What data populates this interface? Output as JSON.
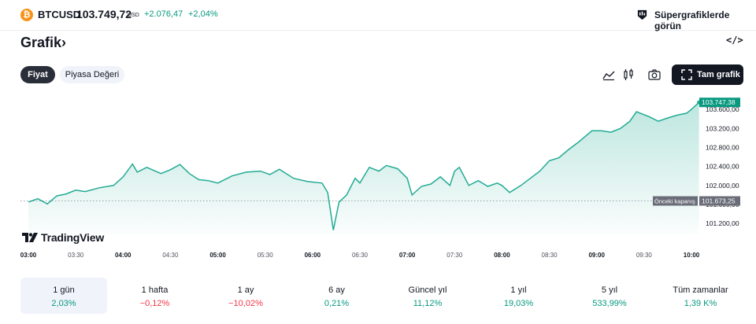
{
  "header": {
    "symbol": "BTCUSD",
    "price": "103.749,72",
    "currency": "USD",
    "change": "+2.076,47",
    "change_pct": "+2,04%",
    "supercharts_link": "Süpergrafiklerde görün"
  },
  "title": "Grafik",
  "tabs": [
    {
      "label": "Fiyat",
      "active": true
    },
    {
      "label": "Piyasa Değeri",
      "active": false
    }
  ],
  "toolbar": {
    "full_chart_label": "Tam grafik"
  },
  "logo_text": "TradingView",
  "colors": {
    "up": "#089981",
    "down": "#f23645",
    "line": "#22ab94"
  },
  "chart_data": {
    "type": "area",
    "x_ticks": [
      "03:00",
      "03:30",
      "04:00",
      "04:30",
      "05:00",
      "05:30",
      "06:00",
      "06:30",
      "07:00",
      "07:30",
      "08:00",
      "08:30",
      "09:00",
      "09:30",
      "10:00"
    ],
    "x_bold": [
      "03:00",
      "04:00",
      "05:00",
      "06:00",
      "07:00",
      "08:00",
      "09:00",
      "10:00"
    ],
    "y_ticks": [
      101200,
      101600,
      102000,
      102400,
      102800,
      103200,
      103600
    ],
    "y_tick_labels": [
      "101.200,00",
      "101.600,00",
      "102.000,00",
      "102.400,00",
      "102.800,00",
      "103.200,00",
      "103.600,00"
    ],
    "ylim": [
      100970,
      103850
    ],
    "last_value": 103747.38,
    "last_label": "103.747,38",
    "prev_close": 101673.25,
    "prev_close_label": "101.673,25",
    "prev_close_text": "Önceki kapanış",
    "points_hours": [
      [
        3.0,
        101650
      ],
      [
        3.1,
        101720
      ],
      [
        3.2,
        101610
      ],
      [
        3.3,
        101780
      ],
      [
        3.4,
        101820
      ],
      [
        3.5,
        101900
      ],
      [
        3.6,
        101870
      ],
      [
        3.75,
        101950
      ],
      [
        3.9,
        102000
      ],
      [
        4.0,
        102180
      ],
      [
        4.1,
        102450
      ],
      [
        4.15,
        102280
      ],
      [
        4.25,
        102380
      ],
      [
        4.4,
        102250
      ],
      [
        4.5,
        102330
      ],
      [
        4.6,
        102440
      ],
      [
        4.7,
        102250
      ],
      [
        4.8,
        102120
      ],
      [
        4.9,
        102100
      ],
      [
        5.0,
        102050
      ],
      [
        5.15,
        102200
      ],
      [
        5.3,
        102280
      ],
      [
        5.45,
        102300
      ],
      [
        5.55,
        102230
      ],
      [
        5.65,
        102340
      ],
      [
        5.8,
        102150
      ],
      [
        5.95,
        102080
      ],
      [
        6.1,
        102050
      ],
      [
        6.16,
        101850
      ],
      [
        6.22,
        101060
      ],
      [
        6.28,
        101650
      ],
      [
        6.36,
        101800
      ],
      [
        6.45,
        102150
      ],
      [
        6.5,
        102050
      ],
      [
        6.6,
        102380
      ],
      [
        6.7,
        102300
      ],
      [
        6.78,
        102420
      ],
      [
        6.9,
        102350
      ],
      [
        7.0,
        102150
      ],
      [
        7.05,
        101800
      ],
      [
        7.15,
        101980
      ],
      [
        7.25,
        102030
      ],
      [
        7.35,
        102180
      ],
      [
        7.45,
        102000
      ],
      [
        7.5,
        102300
      ],
      [
        7.55,
        102380
      ],
      [
        7.65,
        102000
      ],
      [
        7.75,
        102100
      ],
      [
        7.85,
        101980
      ],
      [
        7.95,
        102050
      ],
      [
        8.0,
        102000
      ],
      [
        8.08,
        101850
      ],
      [
        8.2,
        102000
      ],
      [
        8.3,
        102150
      ],
      [
        8.4,
        102300
      ],
      [
        8.5,
        102520
      ],
      [
        8.6,
        102580
      ],
      [
        8.7,
        102750
      ],
      [
        8.8,
        102900
      ],
      [
        8.95,
        103150
      ],
      [
        9.05,
        103150
      ],
      [
        9.15,
        103120
      ],
      [
        9.25,
        103200
      ],
      [
        9.35,
        103350
      ],
      [
        9.42,
        103550
      ],
      [
        9.55,
        103450
      ],
      [
        9.65,
        103350
      ],
      [
        9.75,
        103420
      ],
      [
        9.85,
        103480
      ],
      [
        9.95,
        103520
      ],
      [
        10.0,
        103600
      ],
      [
        10.08,
        103747.38
      ]
    ]
  },
  "periods": [
    {
      "label": "1 gün",
      "value": "2,03%",
      "sign": "pos",
      "selected": true
    },
    {
      "label": "1 hafta",
      "value": "−0,12%",
      "sign": "neg"
    },
    {
      "label": "1 ay",
      "value": "−10,02%",
      "sign": "neg"
    },
    {
      "label": "6 ay",
      "value": "0,21%",
      "sign": "pos"
    },
    {
      "label": "Güncel yıl",
      "value": "11,12%",
      "sign": "pos"
    },
    {
      "label": "1 yıl",
      "value": "19,03%",
      "sign": "pos"
    },
    {
      "label": "5 yıl",
      "value": "533,99%",
      "sign": "pos"
    },
    {
      "label": "Tüm zamanlar",
      "value": "1,39 K%",
      "sign": "pos"
    }
  ]
}
